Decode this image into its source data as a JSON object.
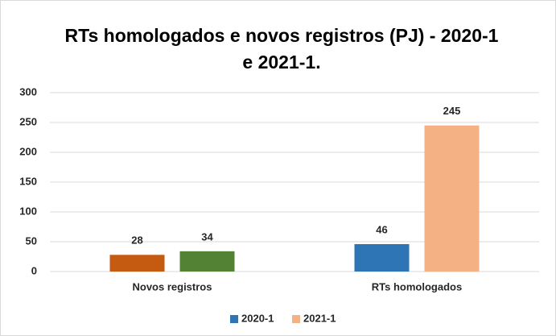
{
  "chart_data": {
    "type": "bar",
    "title": [
      "RTs homologados e novos registros (PJ) - 2020-1",
      "e 2021-1."
    ],
    "categories": [
      "Novos registros",
      "RTs homologados"
    ],
    "series": [
      {
        "name": "2020-1",
        "color": "#2e75b6",
        "colors": [
          "#c55a11",
          "#2e75b6"
        ],
        "values": [
          28,
          46
        ]
      },
      {
        "name": "2021-1",
        "color": "#f4b183",
        "colors": [
          "#548235",
          "#f4b183"
        ],
        "values": [
          34,
          245
        ]
      }
    ],
    "ylim": [
      0,
      300
    ],
    "yticks": [
      0,
      50,
      100,
      150,
      200,
      250,
      300
    ],
    "grid": true,
    "legend": "bottom"
  }
}
